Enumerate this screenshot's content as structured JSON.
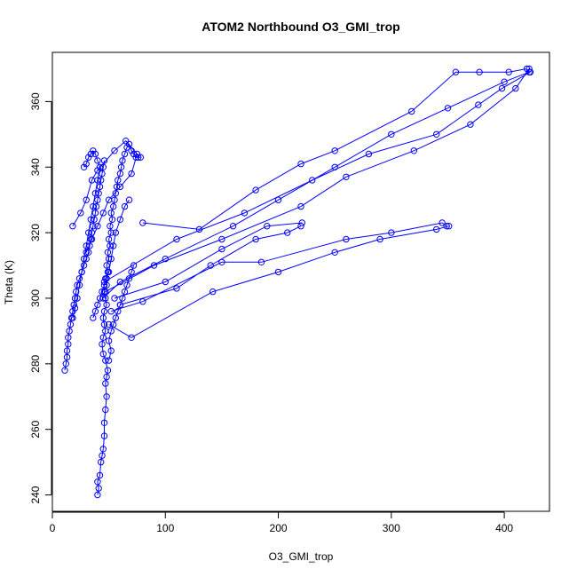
{
  "chart_data": {
    "type": "line",
    "title": "ATOM2 Northbound O3_GMI_trop",
    "xlabel": "O3_GMI_trop",
    "ylabel": "Theta (K)",
    "xlim": [
      0,
      440
    ],
    "ylim": [
      235,
      375
    ],
    "xticks": [
      0,
      100,
      200,
      300,
      400
    ],
    "yticks": [
      240,
      260,
      280,
      300,
      320,
      340,
      360
    ],
    "xtick_labels": [
      "0",
      "100",
      "200",
      "300",
      "400"
    ],
    "ytick_labels": [
      "240",
      "260",
      "280",
      "300",
      "320",
      "340",
      "360"
    ],
    "grid": false,
    "legend": "none",
    "color": "#0000ff",
    "marker": "open-circle",
    "series": [
      {
        "values": [
          [
            40,
            240
          ],
          [
            41,
            242
          ],
          [
            40,
            244
          ],
          [
            42,
            246
          ],
          [
            43,
            250
          ],
          [
            44,
            252
          ],
          [
            45,
            254
          ],
          [
            46,
            258
          ],
          [
            46,
            262
          ],
          [
            47,
            266
          ],
          [
            48,
            270
          ],
          [
            47,
            274
          ],
          [
            48,
            276
          ],
          [
            49,
            278
          ],
          [
            47,
            281
          ],
          [
            45,
            283
          ],
          [
            44,
            286
          ],
          [
            45,
            288
          ],
          [
            47,
            290
          ],
          [
            46,
            292
          ],
          [
            45,
            294
          ],
          [
            46,
            296
          ],
          [
            48,
            298
          ],
          [
            47,
            300
          ],
          [
            46,
            302
          ],
          [
            48,
            304
          ],
          [
            47,
            306
          ],
          [
            49,
            308
          ],
          [
            48,
            310
          ],
          [
            50,
            312
          ],
          [
            49,
            314
          ],
          [
            51,
            316
          ],
          [
            50,
            318
          ],
          [
            52,
            320
          ],
          [
            51,
            322
          ],
          [
            53,
            324
          ],
          [
            52,
            326
          ],
          [
            54,
            328
          ],
          [
            55,
            330
          ],
          [
            56,
            332
          ],
          [
            57,
            334
          ],
          [
            58,
            336
          ],
          [
            60,
            338
          ],
          [
            61,
            340
          ],
          [
            62,
            342
          ],
          [
            64,
            344
          ],
          [
            66,
            346
          ],
          [
            68,
            347
          ],
          [
            70,
            345
          ],
          [
            72,
            344
          ],
          [
            74,
            343
          ],
          [
            76,
            343
          ],
          [
            78,
            343
          ]
        ]
      },
      {
        "values": [
          [
            11,
            278
          ],
          [
            12,
            280
          ],
          [
            13,
            282
          ],
          [
            13,
            284
          ],
          [
            14,
            286
          ],
          [
            14,
            288
          ],
          [
            15,
            290
          ],
          [
            16,
            292
          ],
          [
            17,
            294
          ],
          [
            18,
            296
          ],
          [
            19,
            298
          ],
          [
            20,
            300
          ],
          [
            21,
            302
          ],
          [
            22,
            304
          ],
          [
            24,
            306
          ],
          [
            26,
            308
          ],
          [
            28,
            310
          ],
          [
            30,
            312
          ],
          [
            32,
            314
          ],
          [
            33,
            316
          ],
          [
            34,
            318
          ],
          [
            35,
            320
          ],
          [
            36,
            322
          ],
          [
            37,
            324
          ],
          [
            38,
            326
          ],
          [
            39,
            328
          ],
          [
            40,
            330
          ],
          [
            41,
            332
          ],
          [
            42,
            334
          ],
          [
            43,
            336
          ],
          [
            44,
            338
          ],
          [
            45,
            340
          ],
          [
            46,
            342
          ]
        ]
      },
      {
        "values": [
          [
            28,
            340
          ],
          [
            30,
            341
          ],
          [
            32,
            343
          ],
          [
            34,
            344
          ],
          [
            36,
            345
          ],
          [
            38,
            344
          ],
          [
            40,
            342
          ],
          [
            42,
            340
          ],
          [
            40,
            336
          ],
          [
            38,
            332
          ],
          [
            36,
            328
          ],
          [
            34,
            324
          ],
          [
            32,
            320
          ],
          [
            30,
            316
          ],
          [
            28,
            312
          ],
          [
            26,
            308
          ],
          [
            24,
            304
          ],
          [
            22,
            300
          ],
          [
            20,
            297
          ],
          [
            18,
            294
          ]
        ]
      },
      {
        "values": [
          [
            50,
            281
          ],
          [
            52,
            284
          ],
          [
            50,
            287
          ],
          [
            52,
            290
          ],
          [
            54,
            292
          ],
          [
            56,
            294
          ],
          [
            58,
            296
          ],
          [
            60,
            298
          ],
          [
            62,
            300
          ],
          [
            64,
            302
          ],
          [
            66,
            304
          ],
          [
            68,
            306
          ],
          [
            70,
            308
          ],
          [
            72,
            310
          ]
        ]
      },
      {
        "values": [
          [
            45,
            300
          ],
          [
            60,
            305
          ],
          [
            100,
            312
          ],
          [
            160,
            322
          ],
          [
            200,
            330
          ],
          [
            250,
            340
          ],
          [
            300,
            350
          ],
          [
            350,
            358
          ],
          [
            400,
            366
          ],
          [
            422,
            369
          ]
        ]
      },
      {
        "values": [
          [
            47,
            302
          ],
          [
            90,
            310
          ],
          [
            150,
            318
          ],
          [
            220,
            328
          ],
          [
            260,
            337
          ],
          [
            320,
            345
          ],
          [
            370,
            353
          ],
          [
            410,
            364
          ],
          [
            422,
            370
          ]
        ]
      },
      {
        "values": [
          [
            46,
            305
          ],
          [
            110,
            318
          ],
          [
            170,
            326
          ],
          [
            230,
            336
          ],
          [
            280,
            344
          ],
          [
            340,
            350
          ],
          [
            377,
            359
          ],
          [
            398,
            364
          ],
          [
            423,
            369
          ]
        ]
      },
      {
        "values": [
          [
            80,
            323
          ],
          [
            130,
            321
          ],
          [
            180,
            333
          ],
          [
            220,
            341
          ],
          [
            250,
            345
          ],
          [
            318,
            357
          ],
          [
            357,
            369
          ],
          [
            378,
            369
          ],
          [
            404,
            369
          ],
          [
            420,
            370
          ]
        ]
      },
      {
        "values": [
          [
            55,
            300
          ],
          [
            100,
            305
          ],
          [
            150,
            315
          ],
          [
            190,
            322
          ],
          [
            221,
            323
          ]
        ]
      },
      {
        "values": [
          [
            60,
            298
          ],
          [
            110,
            303
          ],
          [
            140,
            310
          ],
          [
            180,
            318
          ],
          [
            208,
            320
          ],
          [
            220,
            322
          ]
        ]
      },
      {
        "values": [
          [
            50,
            292
          ],
          [
            70,
            288
          ],
          [
            142,
            302
          ],
          [
            200,
            308
          ],
          [
            250,
            314
          ],
          [
            290,
            318
          ],
          [
            340,
            321
          ],
          [
            351,
            322
          ]
        ]
      },
      {
        "values": [
          [
            52,
            296
          ],
          [
            80,
            299
          ],
          [
            150,
            311
          ],
          [
            185,
            311
          ],
          [
            260,
            318
          ],
          [
            300,
            320
          ],
          [
            345,
            323
          ],
          [
            349,
            322
          ]
        ]
      },
      {
        "values": [
          [
            18,
            322
          ],
          [
            25,
            326
          ],
          [
            30,
            330
          ],
          [
            35,
            336
          ],
          [
            40,
            339
          ],
          [
            55,
            345
          ],
          [
            65,
            348
          ],
          [
            75,
            344
          ],
          [
            70,
            338
          ],
          [
            60,
            334
          ],
          [
            50,
            330
          ],
          [
            45,
            326
          ],
          [
            40,
            322
          ],
          [
            35,
            318
          ],
          [
            30,
            314
          ]
        ]
      },
      {
        "values": [
          [
            36,
            294
          ],
          [
            38,
            296
          ],
          [
            40,
            298
          ],
          [
            42,
            300
          ],
          [
            44,
            302
          ],
          [
            46,
            304
          ],
          [
            48,
            306
          ],
          [
            50,
            308
          ],
          [
            52,
            312
          ],
          [
            54,
            316
          ],
          [
            56,
            320
          ],
          [
            60,
            324
          ],
          [
            64,
            328
          ],
          [
            68,
            330
          ]
        ]
      }
    ]
  }
}
